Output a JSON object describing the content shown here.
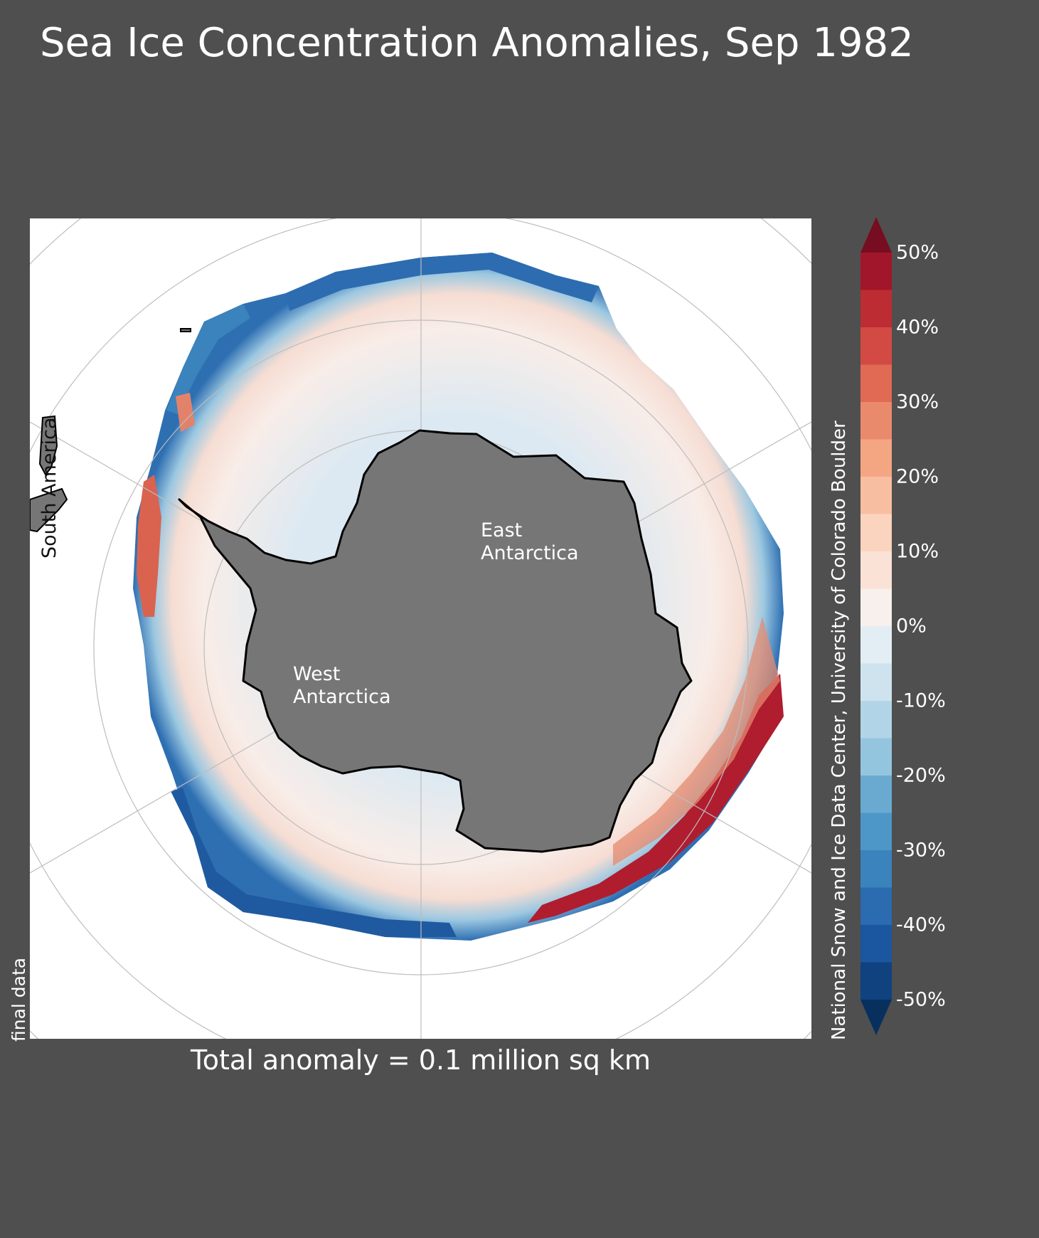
{
  "title": "Sea Ice Concentration Anomalies, Sep 1982",
  "map": {
    "region_labels": {
      "east": "East\nAntarctica",
      "west": "West\nAntarctica",
      "south_america": "South America"
    },
    "status_note": "final data",
    "total_anomaly": "Total anomaly = 0.1 million sq km",
    "source": "National Snow and Ice Data Center, University of Colorado Boulder",
    "colors": {
      "background": "#4f4f4f",
      "land": "#767676",
      "ocean": "#ffffff",
      "coastline": "#000000",
      "gridlines": "#bdbdbd"
    }
  },
  "colorbar": {
    "ticks": [
      "50%",
      "40%",
      "30%",
      "20%",
      "10%",
      "0%",
      "-10%",
      "-20%",
      "-30%",
      "-40%",
      "-50%"
    ],
    "range": [
      -50,
      50
    ],
    "step": 5,
    "extend": "both",
    "colors_top_to_bottom": [
      "#a1162b",
      "#bd2c32",
      "#d24a43",
      "#e06a54",
      "#ea8a6c",
      "#f4a683",
      "#f8bea2",
      "#fbd4bf",
      "#fbe2d6",
      "#f8f0ec",
      "#e3edf4",
      "#cfe3ef",
      "#b2d4e7",
      "#94c5df",
      "#6aaad1",
      "#4d97c8",
      "#3a83bd",
      "#2b6bb0",
      "#1b56a0",
      "#0f427f"
    ],
    "over_color": "#760d20",
    "under_color": "#07305e"
  }
}
